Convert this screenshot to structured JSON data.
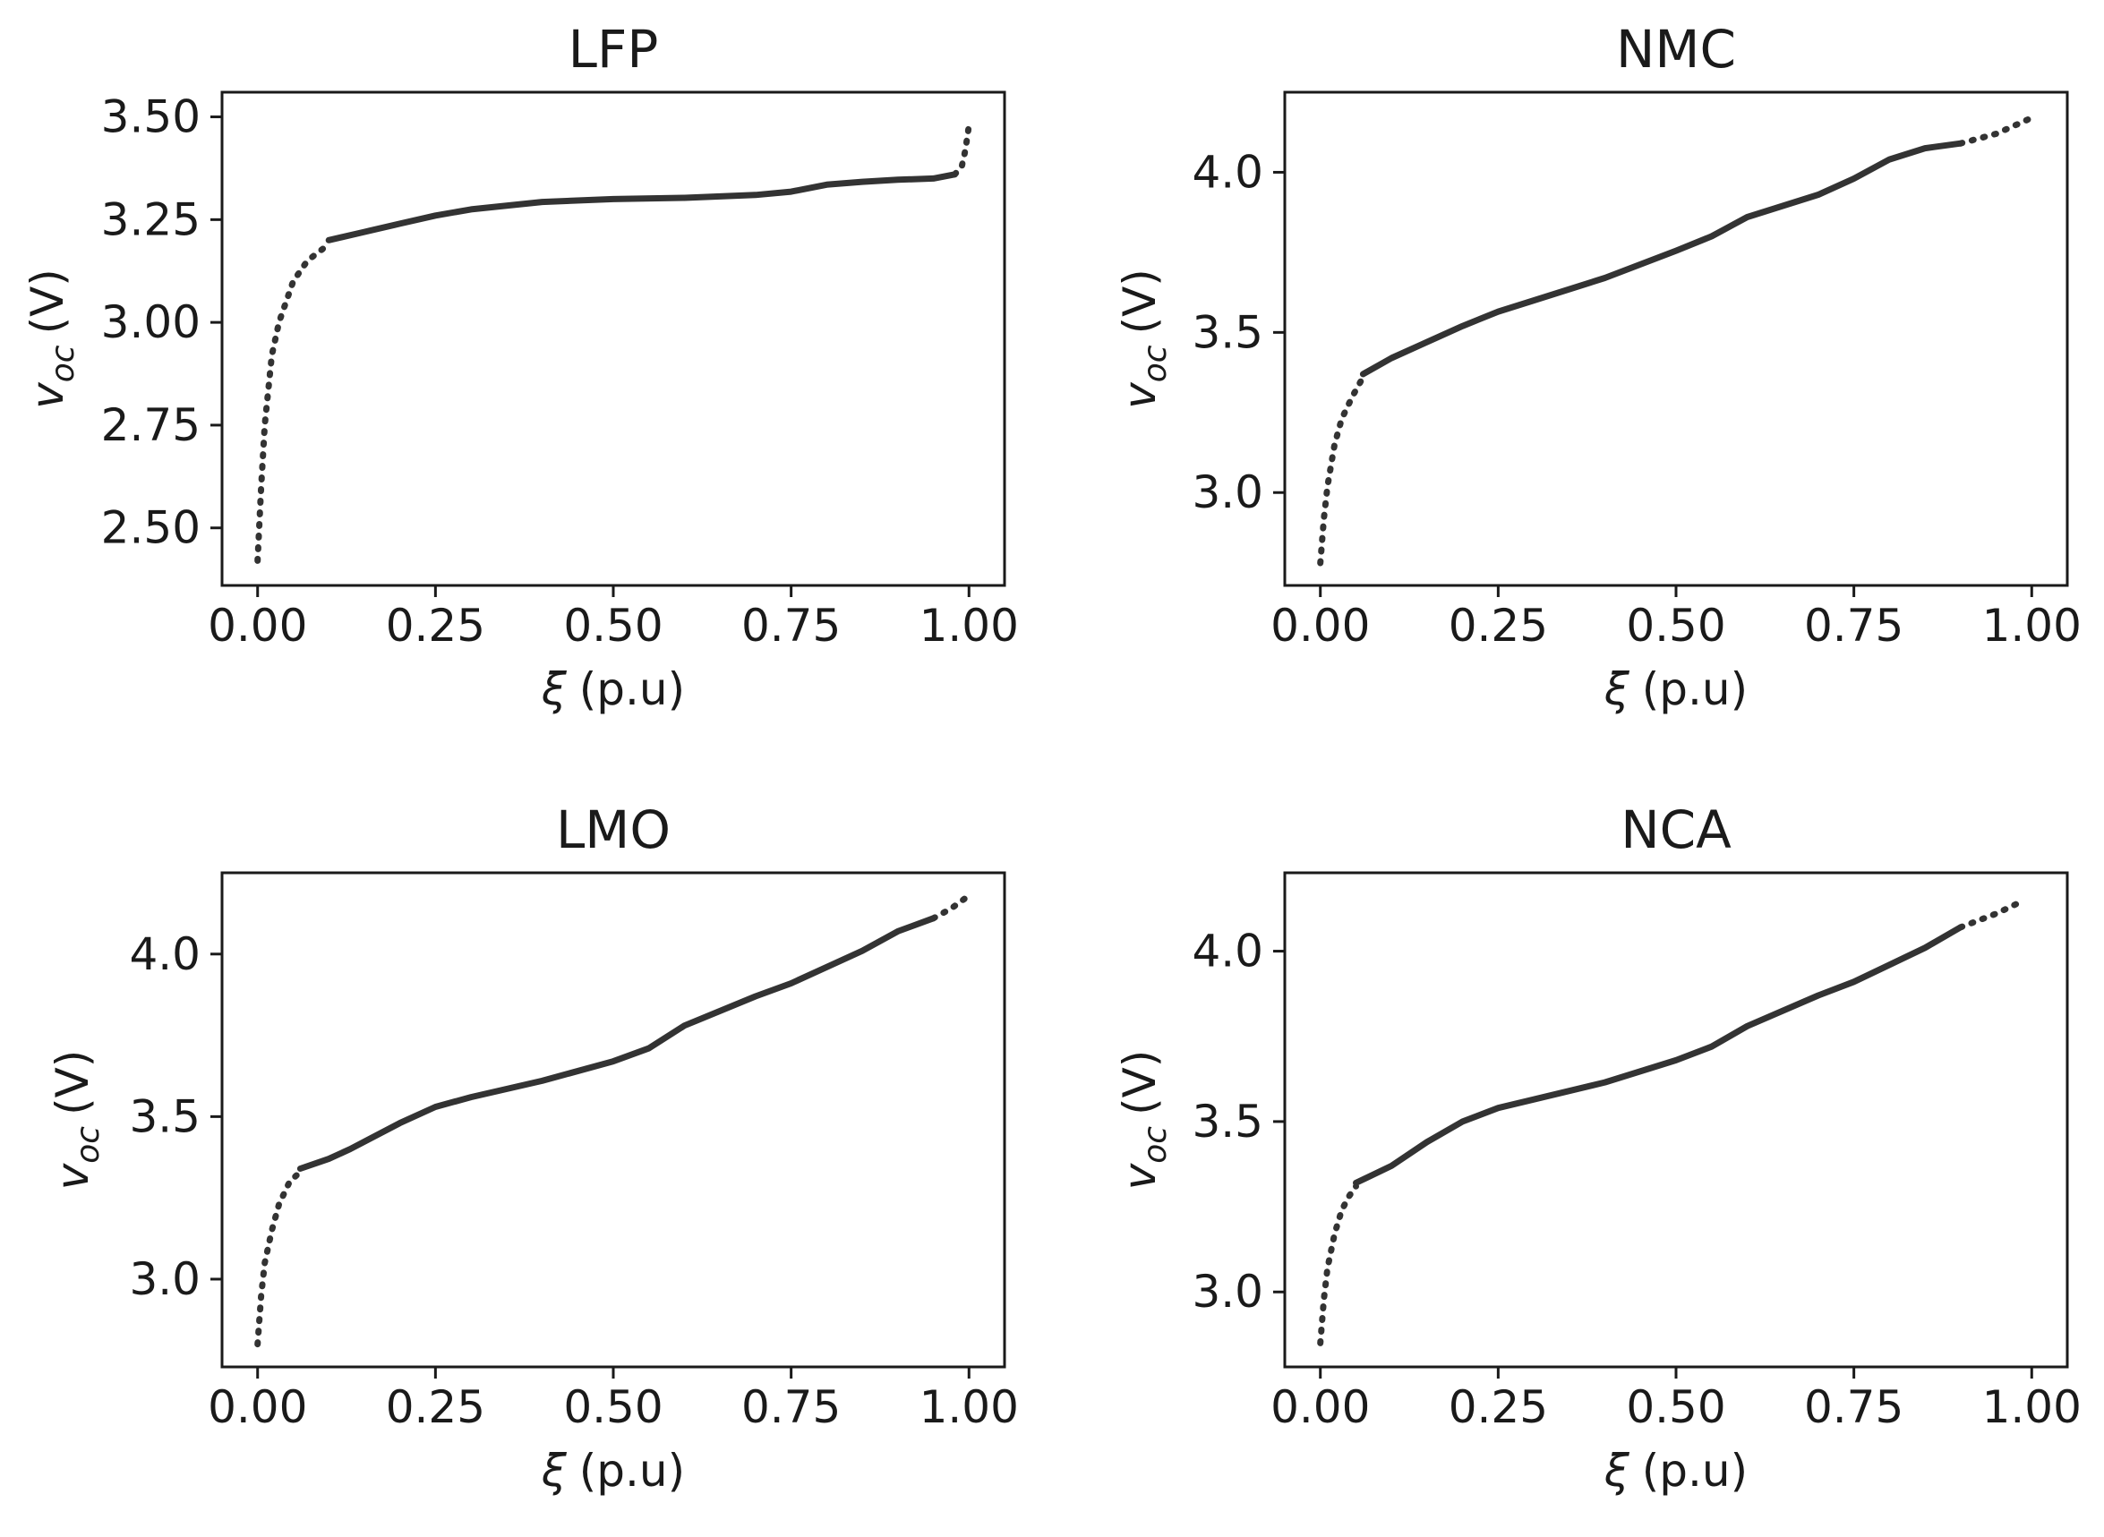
{
  "chart_data": [
    {
      "type": "line",
      "title": "LFP",
      "xlabel_symbol": "ξ",
      "xlabel_unit": "(p.u)",
      "ylabel_symbol": "v",
      "ylabel_sub": "oc",
      "ylabel_unit": "(V)",
      "xlim": [
        -0.05,
        1.05
      ],
      "ylim": [
        2.36,
        3.56
      ],
      "xticks": [
        0,
        0.25,
        0.5,
        0.75,
        1.0
      ],
      "xtick_labels": [
        "0.00",
        "0.25",
        "0.50",
        "0.75",
        "1.00"
      ],
      "yticks": [
        2.5,
        2.75,
        3.0,
        3.25,
        3.5
      ],
      "ytick_labels": [
        "2.50",
        "2.75",
        "3.00",
        "3.25",
        "3.50"
      ],
      "series": [
        {
          "name": "dotted-start",
          "style": "dotted",
          "x": [
            0.0,
            0.005,
            0.01,
            0.02,
            0.03,
            0.05,
            0.07,
            0.1
          ],
          "y": [
            2.42,
            2.6,
            2.75,
            2.92,
            3.0,
            3.1,
            3.15,
            3.19
          ]
        },
        {
          "name": "solid",
          "style": "solid",
          "x": [
            0.1,
            0.15,
            0.2,
            0.25,
            0.3,
            0.4,
            0.5,
            0.6,
            0.7,
            0.75,
            0.8,
            0.85,
            0.9,
            0.95,
            0.98
          ],
          "y": [
            3.2,
            3.22,
            3.24,
            3.26,
            3.275,
            3.293,
            3.3,
            3.303,
            3.31,
            3.318,
            3.335,
            3.342,
            3.347,
            3.35,
            3.36
          ]
        },
        {
          "name": "dotted-end",
          "style": "dotted",
          "x": [
            0.98,
            0.99,
            0.995,
            1.0
          ],
          "y": [
            3.36,
            3.38,
            3.42,
            3.48
          ]
        }
      ]
    },
    {
      "type": "line",
      "title": "NMC",
      "xlabel_symbol": "ξ",
      "xlabel_unit": "(p.u)",
      "ylabel_symbol": "v",
      "ylabel_sub": "oc",
      "ylabel_unit": "(V)",
      "xlim": [
        -0.05,
        1.05
      ],
      "ylim": [
        2.71,
        4.25
      ],
      "xticks": [
        0,
        0.25,
        0.5,
        0.75,
        1.0
      ],
      "xtick_labels": [
        "0.00",
        "0.25",
        "0.50",
        "0.75",
        "1.00"
      ],
      "yticks": [
        3.0,
        3.5,
        4.0
      ],
      "ytick_labels": [
        "3.0",
        "3.5",
        "4.0"
      ],
      "series": [
        {
          "name": "dotted-start",
          "style": "dotted",
          "x": [
            0.0,
            0.005,
            0.01,
            0.02,
            0.03,
            0.045,
            0.06
          ],
          "y": [
            2.78,
            2.92,
            3.02,
            3.15,
            3.23,
            3.3,
            3.36
          ]
        },
        {
          "name": "solid",
          "style": "solid",
          "x": [
            0.06,
            0.1,
            0.15,
            0.2,
            0.25,
            0.3,
            0.4,
            0.5,
            0.55,
            0.6,
            0.7,
            0.75,
            0.8,
            0.85,
            0.9
          ],
          "y": [
            3.37,
            3.42,
            3.47,
            3.52,
            3.565,
            3.6,
            3.67,
            3.755,
            3.8,
            3.86,
            3.93,
            3.98,
            4.04,
            4.075,
            4.09
          ]
        },
        {
          "name": "dotted-end",
          "style": "dotted",
          "x": [
            0.9,
            0.95,
            1.0
          ],
          "y": [
            4.09,
            4.12,
            4.17
          ]
        }
      ]
    },
    {
      "type": "line",
      "title": "LMO",
      "xlabel_symbol": "ξ",
      "xlabel_unit": "(p.u)",
      "ylabel_symbol": "v",
      "ylabel_sub": "oc",
      "ylabel_unit": "(V)",
      "xlim": [
        -0.05,
        1.05
      ],
      "ylim": [
        2.73,
        4.25
      ],
      "xticks": [
        0,
        0.25,
        0.5,
        0.75,
        1.0
      ],
      "xtick_labels": [
        "0.00",
        "0.25",
        "0.50",
        "0.75",
        "1.00"
      ],
      "yticks": [
        3.0,
        3.5,
        4.0
      ],
      "ytick_labels": [
        "3.0",
        "3.5",
        "4.0"
      ],
      "series": [
        {
          "name": "dotted-start",
          "style": "dotted",
          "x": [
            0.0,
            0.005,
            0.01,
            0.02,
            0.03,
            0.045,
            0.06
          ],
          "y": [
            2.8,
            2.95,
            3.05,
            3.15,
            3.23,
            3.3,
            3.33
          ]
        },
        {
          "name": "solid",
          "style": "solid",
          "x": [
            0.06,
            0.1,
            0.13,
            0.2,
            0.25,
            0.3,
            0.4,
            0.5,
            0.55,
            0.6,
            0.7,
            0.75,
            0.8,
            0.85,
            0.9,
            0.95
          ],
          "y": [
            3.34,
            3.37,
            3.4,
            3.48,
            3.53,
            3.56,
            3.61,
            3.67,
            3.71,
            3.78,
            3.87,
            3.91,
            3.96,
            4.01,
            4.07,
            4.11
          ]
        },
        {
          "name": "dotted-end",
          "style": "dotted",
          "x": [
            0.95,
            0.975,
            1.0
          ],
          "y": [
            4.11,
            4.14,
            4.18
          ]
        }
      ]
    },
    {
      "type": "line",
      "title": "NCA",
      "xlabel_symbol": "ξ",
      "xlabel_unit": "(p.u)",
      "ylabel_symbol": "v",
      "ylabel_sub": "oc",
      "ylabel_unit": "(V)",
      "xlim": [
        -0.05,
        1.05
      ],
      "ylim": [
        2.78,
        4.23
      ],
      "xticks": [
        0,
        0.25,
        0.5,
        0.75,
        1.0
      ],
      "xtick_labels": [
        "0.00",
        "0.25",
        "0.50",
        "0.75",
        "1.00"
      ],
      "yticks": [
        3.0,
        3.5,
        4.0
      ],
      "ytick_labels": [
        "3.0",
        "3.5",
        "4.0"
      ],
      "series": [
        {
          "name": "dotted-start",
          "style": "dotted",
          "x": [
            0.0,
            0.005,
            0.01,
            0.02,
            0.03,
            0.04,
            0.05
          ],
          "y": [
            2.85,
            2.98,
            3.07,
            3.17,
            3.24,
            3.28,
            3.31
          ]
        },
        {
          "name": "solid",
          "style": "solid",
          "x": [
            0.05,
            0.1,
            0.15,
            0.2,
            0.25,
            0.3,
            0.4,
            0.5,
            0.55,
            0.6,
            0.7,
            0.75,
            0.8,
            0.85,
            0.9
          ],
          "y": [
            3.32,
            3.37,
            3.44,
            3.5,
            3.54,
            3.565,
            3.615,
            3.68,
            3.72,
            3.78,
            3.87,
            3.91,
            3.96,
            4.01,
            4.07
          ]
        },
        {
          "name": "dotted-end",
          "style": "dotted",
          "x": [
            0.9,
            0.95,
            0.99
          ],
          "y": [
            4.07,
            4.11,
            4.15
          ]
        }
      ]
    }
  ]
}
